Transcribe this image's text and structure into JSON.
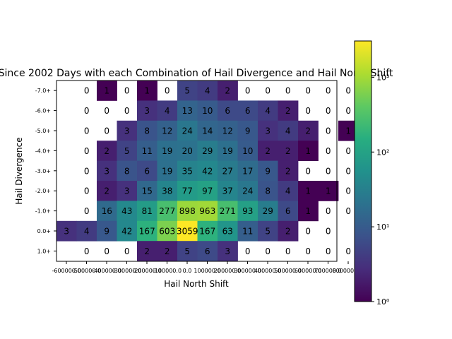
{
  "chart_data": {
    "type": "heatmap",
    "title": "Since 2002 Days with each Combination of Hail Divergence and Hail North Shift",
    "xlabel": "Hail North Shift",
    "ylabel": "Hail Divergence",
    "x_categories": [
      "-600000.0",
      "-500000.0",
      "-400000.0",
      "-300000.0",
      "-200000.0",
      "-100000.0",
      "0.0",
      "100000.0",
      "200000.0",
      "300000.0",
      "400000.0",
      "500000.0",
      "600000.0",
      "700000.0",
      "800000.0+"
    ],
    "y_categories": [
      "-7.0+",
      "-6.0+",
      "-5.0+",
      "-4.0+",
      "-3.0+",
      "-2.0+",
      "-1.0+",
      "0.0+",
      "1.0+"
    ],
    "values": [
      [
        null,
        0,
        1,
        0,
        1,
        0,
        5,
        4,
        2,
        0,
        0,
        0,
        0,
        0,
        0
      ],
      [
        null,
        0,
        0,
        0,
        3,
        4,
        13,
        10,
        6,
        6,
        4,
        2,
        0,
        0,
        0
      ],
      [
        null,
        0,
        0,
        3,
        8,
        12,
        24,
        14,
        12,
        9,
        3,
        4,
        2,
        0,
        1
      ],
      [
        null,
        0,
        2,
        5,
        11,
        19,
        20,
        29,
        19,
        10,
        2,
        2,
        1,
        0,
        0
      ],
      [
        null,
        0,
        3,
        8,
        6,
        19,
        35,
        42,
        27,
        17,
        9,
        2,
        0,
        0,
        0
      ],
      [
        null,
        0,
        2,
        3,
        15,
        38,
        77,
        97,
        37,
        24,
        8,
        4,
        1,
        1,
        0
      ],
      [
        null,
        0,
        16,
        43,
        81,
        277,
        898,
        963,
        271,
        93,
        29,
        6,
        1,
        0,
        0
      ],
      [
        3,
        4,
        9,
        42,
        167,
        603,
        3059,
        167,
        63,
        11,
        5,
        2,
        0,
        0,
        null
      ],
      [
        null,
        0,
        0,
        0,
        2,
        2,
        5,
        6,
        3,
        0,
        0,
        0,
        0,
        0,
        0
      ]
    ],
    "colorbar": {
      "scale": "log",
      "range": [
        1,
        3059
      ],
      "colormap": "viridis",
      "tick_labels": [
        "10⁰",
        "10¹",
        "10²",
        "10³"
      ]
    }
  }
}
